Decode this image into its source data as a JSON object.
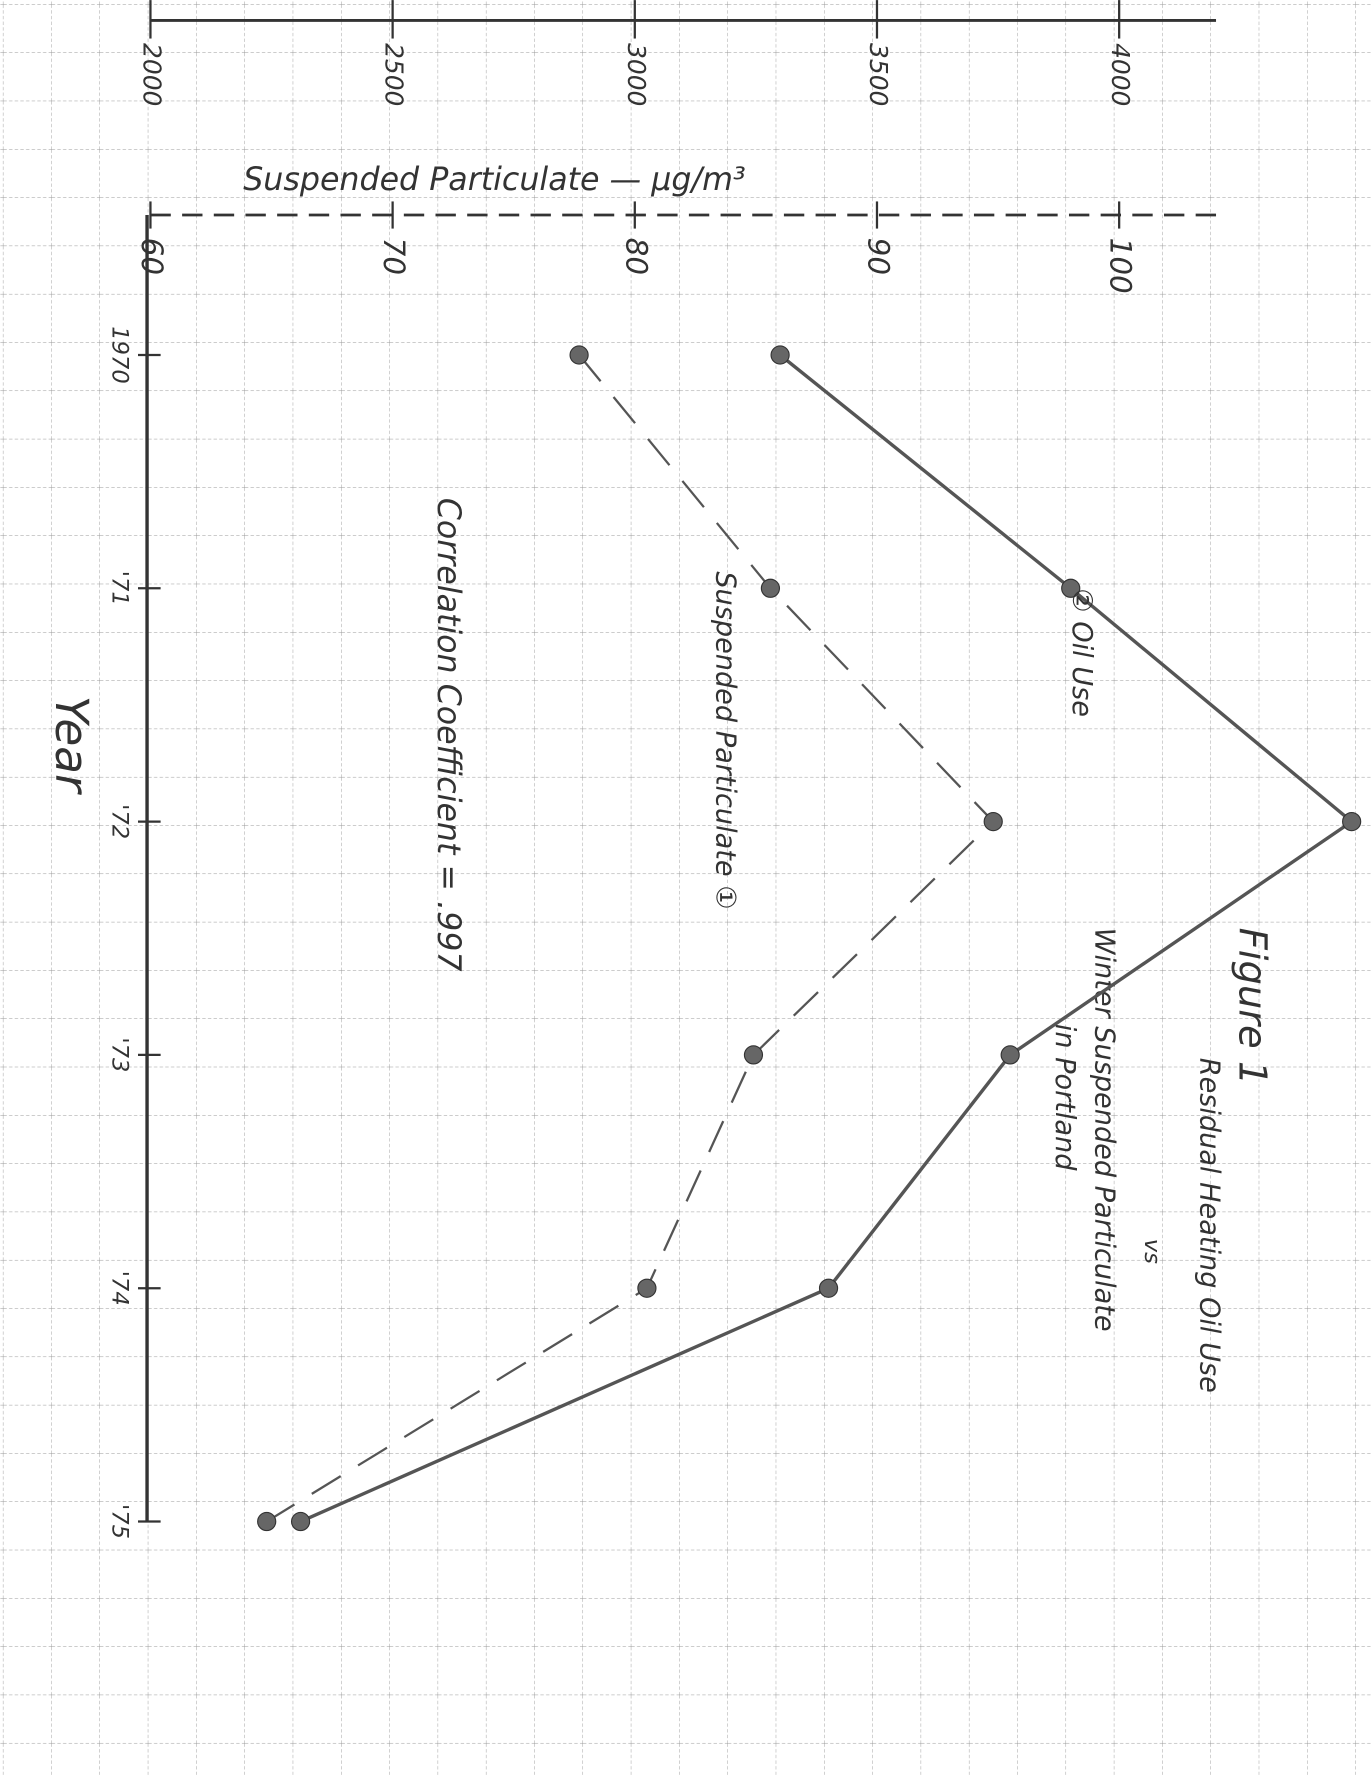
{
  "chart_data": {
    "type": "line",
    "title": "Figure 1",
    "subtitle": [
      "Residual Heating Oil Use",
      "vs",
      "Winter Suspended Particulate",
      "in Portland"
    ],
    "xlabel": "Year",
    "ylabel": "Suspended Particulate — µg/m³",
    "annotation": "Correlation Coefficient = .997",
    "x": [
      1970,
      1971,
      1972,
      1973,
      1974,
      1975
    ],
    "xlim": [
      1969.4,
      1975
    ],
    "xticks": [
      {
        "value": 1970,
        "label": "1970"
      },
      {
        "value": 1971,
        "label": "'71"
      },
      {
        "value": 1972,
        "label": "'72"
      },
      {
        "value": 1973,
        "label": "'73"
      },
      {
        "value": 1974,
        "label": "'74"
      },
      {
        "value": 1975,
        "label": "'75"
      }
    ],
    "ylim": [
      60,
      104
    ],
    "yticks": [
      60,
      70,
      80,
      90,
      100
    ],
    "y2lim": [
      2000,
      4200
    ],
    "y2ticks": [
      2000,
      2500,
      3000,
      3500,
      4000
    ],
    "grid": true,
    "series": [
      {
        "name": "② Oil Use",
        "color": "#555555",
        "axis": "y2",
        "line_style": "solid",
        "values": [
          3300,
          3900,
          4480,
          3775,
          3400,
          2310
        ]
      },
      {
        "name": "Suspended Particulate ①",
        "color": "#555555",
        "axis": "y",
        "line_style": "dashed",
        "values": [
          77.7,
          85.6,
          94.8,
          84.9,
          80.5,
          64.8
        ]
      }
    ]
  }
}
